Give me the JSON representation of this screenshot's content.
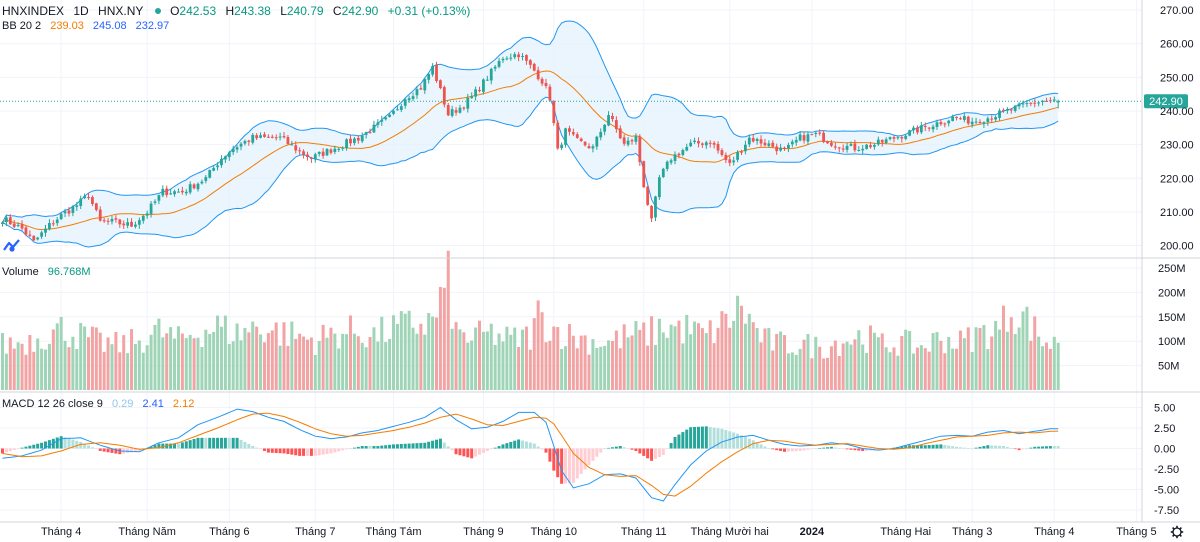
{
  "header": {
    "symbol": "HNXINDEX",
    "interval": "1D",
    "exchange": "HNX.NY",
    "open_label": "O",
    "open": "242.53",
    "high_label": "H",
    "high": "243.38",
    "low_label": "L",
    "low": "240.79",
    "close_label": "C",
    "close": "242.90",
    "change": "+0.31 (+0.13%)"
  },
  "bb_legend": {
    "label": "BB 20 2",
    "basis": "239.03",
    "upper": "245.08",
    "lower": "232.97"
  },
  "volume_legend": {
    "label": "Volume",
    "value": "96.768M"
  },
  "macd_legend": {
    "label": "MACD 12 26 close 9",
    "hist": "0.29",
    "macd": "2.41",
    "signal": "2.12"
  },
  "last_price_tag": "242.90",
  "colors": {
    "up": "#26a69a",
    "down": "#ef5350",
    "vol_up": "#9fd4b7",
    "vol_down": "#f2a3a3",
    "bb_band": "#2196f3",
    "bb_fill": "#e3f2fd",
    "bb_basis": "#f57c00",
    "macd_line": "#2196f3",
    "signal_line": "#f57c00",
    "tag": "#26a69a"
  },
  "chart_data": {
    "type": "candlestick",
    "price_axis": {
      "ticks": [
        200,
        210,
        220,
        230,
        240,
        250,
        260,
        270
      ],
      "labels": [
        "200.00",
        "210.00",
        "220.00",
        "230.00",
        "240.00",
        "250.00",
        "260.00",
        "270.00"
      ],
      "range": [
        196,
        273
      ]
    },
    "volume_axis": {
      "ticks": [
        50,
        100,
        150,
        200,
        250
      ],
      "labels": [
        "50M",
        "100M",
        "150M",
        "200M",
        "250M"
      ],
      "range": [
        0,
        260
      ],
      "unit": "M"
    },
    "macd_axis": {
      "ticks": [
        -7.5,
        -5,
        -2.5,
        0,
        2.5,
        5
      ],
      "labels": [
        "-7.50",
        "-5.00",
        "-2.50",
        "0.00",
        "2.50",
        "5.00"
      ],
      "range": [
        -8.4,
        5.8
      ]
    },
    "x_labels": [
      {
        "label": "Tháng 4",
        "bar": 15
      },
      {
        "label": "Tháng Năm",
        "bar": 37
      },
      {
        "label": "Tháng 6",
        "bar": 58
      },
      {
        "label": "Tháng 7",
        "bar": 80
      },
      {
        "label": "Tháng Tám",
        "bar": 100
      },
      {
        "label": "Tháng 9",
        "bar": 123
      },
      {
        "label": "Tháng 10",
        "bar": 141
      },
      {
        "label": "Tháng 11",
        "bar": 164
      },
      {
        "label": "Tháng Mười hai",
        "bar": 186
      },
      {
        "label": "2024",
        "bar": 207
      },
      {
        "label": "Tháng Hai",
        "bar": 231
      },
      {
        "label": "Tháng 3",
        "bar": 248
      },
      {
        "label": "Tháng 4",
        "bar": 269
      },
      {
        "label": "Tháng 5",
        "bar": 290
      }
    ],
    "close_anchors": [
      [
        0,
        208
      ],
      [
        5,
        205
      ],
      [
        8,
        201
      ],
      [
        12,
        206
      ],
      [
        15,
        209
      ],
      [
        19,
        212
      ],
      [
        22,
        215
      ],
      [
        25,
        207
      ],
      [
        28,
        207
      ],
      [
        33,
        206
      ],
      [
        37,
        210
      ],
      [
        41,
        216
      ],
      [
        46,
        216
      ],
      [
        52,
        220
      ],
      [
        56,
        226
      ],
      [
        59,
        229
      ],
      [
        64,
        232
      ],
      [
        68,
        232
      ],
      [
        71,
        232
      ],
      [
        76,
        228
      ],
      [
        79,
        226
      ],
      [
        83,
        228
      ],
      [
        87,
        230
      ],
      [
        91,
        232
      ],
      [
        95,
        235
      ],
      [
        99,
        238
      ],
      [
        103,
        244
      ],
      [
        107,
        247
      ],
      [
        110,
        253
      ],
      [
        114,
        239
      ],
      [
        117,
        241
      ],
      [
        120,
        244
      ],
      [
        124,
        250
      ],
      [
        128,
        256
      ],
      [
        132,
        257
      ],
      [
        136,
        252
      ],
      [
        138,
        249
      ],
      [
        140,
        244
      ],
      [
        142,
        228
      ],
      [
        144,
        234
      ],
      [
        147,
        231
      ],
      [
        151,
        229
      ],
      [
        155,
        239
      ],
      [
        159,
        230
      ],
      [
        162,
        232
      ],
      [
        164,
        218
      ],
      [
        166,
        207
      ],
      [
        168,
        220
      ],
      [
        171,
        226
      ],
      [
        176,
        230
      ],
      [
        181,
        231
      ],
      [
        186,
        224
      ],
      [
        191,
        232
      ],
      [
        196,
        230
      ],
      [
        200,
        228
      ],
      [
        204,
        232
      ],
      [
        208,
        233
      ],
      [
        213,
        230
      ],
      [
        218,
        229
      ],
      [
        223,
        230
      ],
      [
        228,
        232
      ],
      [
        233,
        234
      ],
      [
        238,
        236
      ],
      [
        243,
        238
      ],
      [
        248,
        237
      ],
      [
        252,
        238
      ],
      [
        257,
        240
      ],
      [
        262,
        242
      ],
      [
        266,
        243
      ],
      [
        270,
        242.9
      ]
    ],
    "volume_anchors": [
      [
        0,
        100
      ],
      [
        5,
        105
      ],
      [
        10,
        120
      ],
      [
        15,
        135
      ],
      [
        20,
        120
      ],
      [
        25,
        105
      ],
      [
        30,
        98
      ],
      [
        35,
        110
      ],
      [
        40,
        130
      ],
      [
        45,
        110
      ],
      [
        50,
        130
      ],
      [
        55,
        140
      ],
      [
        60,
        125
      ],
      [
        65,
        140
      ],
      [
        70,
        130
      ],
      [
        75,
        120
      ],
      [
        80,
        110
      ],
      [
        85,
        125
      ],
      [
        90,
        130
      ],
      [
        95,
        120
      ],
      [
        100,
        135
      ],
      [
        105,
        145
      ],
      [
        110,
        150
      ],
      [
        114,
        240
      ],
      [
        116,
        125
      ],
      [
        120,
        115
      ],
      [
        125,
        125
      ],
      [
        130,
        110
      ],
      [
        135,
        120
      ],
      [
        137,
        165
      ],
      [
        140,
        140
      ],
      [
        145,
        120
      ],
      [
        150,
        110
      ],
      [
        155,
        105
      ],
      [
        160,
        120
      ],
      [
        165,
        125
      ],
      [
        170,
        140
      ],
      [
        175,
        135
      ],
      [
        180,
        120
      ],
      [
        185,
        150
      ],
      [
        189,
        185
      ],
      [
        192,
        140
      ],
      [
        195,
        110
      ],
      [
        200,
        100
      ],
      [
        205,
        100
      ],
      [
        210,
        95
      ],
      [
        215,
        110
      ],
      [
        220,
        120
      ],
      [
        225,
        100
      ],
      [
        230,
        105
      ],
      [
        235,
        95
      ],
      [
        240,
        115
      ],
      [
        245,
        105
      ],
      [
        250,
        125
      ],
      [
        255,
        135
      ],
      [
        258,
        180
      ],
      [
        262,
        155
      ],
      [
        266,
        110
      ],
      [
        270,
        97
      ]
    ],
    "macd_anchors": [
      [
        0,
        -1.2
      ],
      [
        5,
        -0.9
      ],
      [
        10,
        -0.2
      ],
      [
        15,
        1.2
      ],
      [
        20,
        1.3
      ],
      [
        25,
        0.4
      ],
      [
        30,
        -0.3
      ],
      [
        35,
        -0.4
      ],
      [
        40,
        0.7
      ],
      [
        45,
        1.3
      ],
      [
        50,
        2.9
      ],
      [
        55,
        3.8
      ],
      [
        60,
        4.8
      ],
      [
        64,
        4.5
      ],
      [
        68,
        3.8
      ],
      [
        72,
        3.3
      ],
      [
        76,
        2.3
      ],
      [
        80,
        1.5
      ],
      [
        84,
        1.2
      ],
      [
        88,
        1.4
      ],
      [
        92,
        1.9
      ],
      [
        96,
        2.2
      ],
      [
        100,
        2.7
      ],
      [
        104,
        3.2
      ],
      [
        108,
        3.8
      ],
      [
        112,
        5.0
      ],
      [
        116,
        3.5
      ],
      [
        120,
        2.4
      ],
      [
        124,
        2.6
      ],
      [
        128,
        3.3
      ],
      [
        132,
        4.4
      ],
      [
        136,
        4.4
      ],
      [
        139,
        3.2
      ],
      [
        141,
        0.3
      ],
      [
        143,
        -2.7
      ],
      [
        146,
        -4.8
      ],
      [
        150,
        -4.3
      ],
      [
        154,
        -3.2
      ],
      [
        158,
        -3.1
      ],
      [
        162,
        -3.6
      ],
      [
        166,
        -6.0
      ],
      [
        169,
        -6.4
      ],
      [
        172,
        -4.4
      ],
      [
        176,
        -2.0
      ],
      [
        180,
        -0.3
      ],
      [
        184,
        0.8
      ],
      [
        188,
        1.4
      ],
      [
        192,
        1.6
      ],
      [
        196,
        1.0
      ],
      [
        200,
        0.5
      ],
      [
        204,
        0.3
      ],
      [
        208,
        0.4
      ],
      [
        212,
        0.7
      ],
      [
        216,
        0.5
      ],
      [
        220,
        0.0
      ],
      [
        224,
        -0.2
      ],
      [
        228,
        0.0
      ],
      [
        232,
        0.5
      ],
      [
        236,
        1.0
      ],
      [
        240,
        1.5
      ],
      [
        244,
        1.6
      ],
      [
        248,
        1.5
      ],
      [
        252,
        2.0
      ],
      [
        256,
        2.2
      ],
      [
        260,
        1.8
      ],
      [
        264,
        2.1
      ],
      [
        268,
        2.4
      ],
      [
        270,
        2.41
      ]
    ],
    "signal_anchors": [
      [
        0,
        -0.6
      ],
      [
        5,
        -1.0
      ],
      [
        10,
        -0.9
      ],
      [
        15,
        -0.3
      ],
      [
        20,
        0.5
      ],
      [
        25,
        0.7
      ],
      [
        30,
        0.4
      ],
      [
        35,
        -0.1
      ],
      [
        40,
        0.1
      ],
      [
        45,
        0.7
      ],
      [
        50,
        1.6
      ],
      [
        55,
        2.5
      ],
      [
        60,
        3.5
      ],
      [
        64,
        4.2
      ],
      [
        68,
        4.3
      ],
      [
        72,
        3.9
      ],
      [
        76,
        3.2
      ],
      [
        80,
        2.4
      ],
      [
        84,
        1.8
      ],
      [
        88,
        1.5
      ],
      [
        92,
        1.6
      ],
      [
        96,
        1.9
      ],
      [
        100,
        2.2
      ],
      [
        104,
        2.6
      ],
      [
        108,
        3.1
      ],
      [
        112,
        3.8
      ],
      [
        116,
        4.2
      ],
      [
        120,
        3.6
      ],
      [
        124,
        2.9
      ],
      [
        128,
        2.8
      ],
      [
        132,
        3.3
      ],
      [
        136,
        3.8
      ],
      [
        139,
        3.7
      ],
      [
        141,
        3.0
      ],
      [
        143,
        1.6
      ],
      [
        146,
        -0.6
      ],
      [
        150,
        -2.3
      ],
      [
        154,
        -3.2
      ],
      [
        158,
        -3.4
      ],
      [
        162,
        -3.3
      ],
      [
        166,
        -4.5
      ],
      [
        169,
        -5.6
      ],
      [
        172,
        -5.8
      ],
      [
        176,
        -4.6
      ],
      [
        180,
        -3.0
      ],
      [
        184,
        -1.6
      ],
      [
        188,
        -0.4
      ],
      [
        192,
        0.6
      ],
      [
        196,
        1.0
      ],
      [
        200,
        0.9
      ],
      [
        204,
        0.6
      ],
      [
        208,
        0.4
      ],
      [
        212,
        0.5
      ],
      [
        216,
        0.6
      ],
      [
        220,
        0.3
      ],
      [
        224,
        0.0
      ],
      [
        228,
        -0.1
      ],
      [
        232,
        0.1
      ],
      [
        236,
        0.6
      ],
      [
        240,
        1.0
      ],
      [
        244,
        1.4
      ],
      [
        248,
        1.5
      ],
      [
        252,
        1.6
      ],
      [
        256,
        1.9
      ],
      [
        260,
        2.0
      ],
      [
        264,
        1.9
      ],
      [
        268,
        2.1
      ],
      [
        270,
        2.12
      ]
    ]
  }
}
